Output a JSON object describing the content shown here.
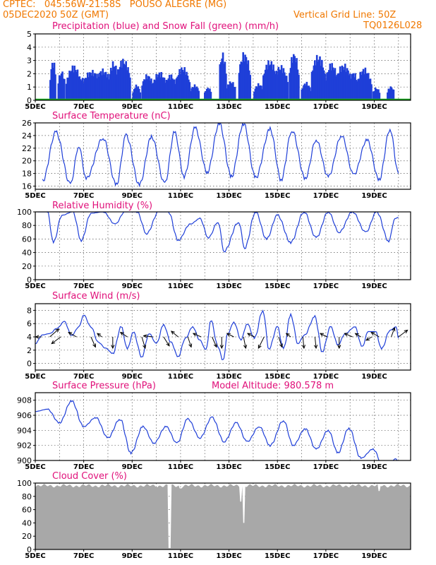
{
  "header": {
    "station": "CPTEC:   045:56W-21:58S   POUSO ALEGRE (MG)",
    "run": "05DEC2020 50Z (GMT)",
    "grid_note": "Vertical Grid Line: 50Z",
    "code": "TQ0126L028"
  },
  "colors": {
    "header": "#f07800",
    "title": "#e0107a",
    "line": "#1f3fd8",
    "snow": "#19a51e",
    "cloud": "#a8a8a8"
  },
  "x_ticks": [
    "5DEC",
    "7DEC",
    "9DEC",
    "11DEC",
    "13DEC",
    "15DEC",
    "17DEC",
    "19DEC"
  ],
  "x_tick_days": [
    5,
    7,
    9,
    11,
    13,
    15,
    17,
    19
  ],
  "x_range": [
    5,
    20.5
  ],
  "chart_data": [
    {
      "type": "bar",
      "title": "Precipitation (blue) and Snow Fall (green) (mm/h)",
      "ylim": [
        0,
        5
      ],
      "yticks": [
        0,
        1,
        2,
        3,
        4,
        5
      ],
      "series": [
        {
          "kind": "precip",
          "peaks": [
            [
              5.7,
              3.1,
              0.12
            ],
            [
              6.05,
              2.3,
              0.15
            ],
            [
              6.55,
              2.7,
              0.3
            ],
            [
              6.85,
              1.8,
              0.2
            ],
            [
              7.3,
              2.3,
              0.4
            ],
            [
              7.75,
              2.4,
              0.35
            ],
            [
              8.2,
              3.0,
              0.2
            ],
            [
              8.6,
              3.2,
              0.3
            ],
            [
              9.15,
              1.2,
              0.15
            ],
            [
              9.6,
              2.0,
              0.25
            ],
            [
              10.1,
              2.2,
              0.3
            ],
            [
              10.55,
              2.0,
              0.25
            ],
            [
              11.05,
              2.6,
              0.3
            ],
            [
              11.55,
              1.2,
              0.2
            ],
            [
              12.1,
              1.0,
              0.15
            ],
            [
              12.7,
              3.7,
              0.15
            ],
            [
              13.05,
              1.5,
              0.2
            ],
            [
              13.6,
              3.7,
              0.25
            ],
            [
              14.2,
              1.3,
              0.2
            ],
            [
              14.65,
              3.1,
              0.3
            ],
            [
              15.1,
              2.7,
              0.3
            ],
            [
              15.65,
              3.7,
              0.2
            ],
            [
              16.15,
              1.4,
              0.2
            ],
            [
              16.65,
              3.5,
              0.3
            ],
            [
              17.2,
              2.9,
              0.25
            ],
            [
              17.7,
              2.8,
              0.35
            ],
            [
              18.1,
              2.2,
              0.2
            ],
            [
              18.55,
              2.5,
              0.3
            ],
            [
              19.05,
              1.0,
              0.15
            ],
            [
              19.65,
              1.1,
              0.15
            ]
          ]
        },
        {
          "kind": "snow",
          "level": 0.05
        }
      ]
    },
    {
      "type": "line",
      "title": "Surface Temperature (nC)",
      "ylim": [
        15.5,
        26
      ],
      "yticks": [
        16,
        18,
        20,
        22,
        24,
        26
      ],
      "min_max": [
        [
          5.3,
          16.8
        ],
        [
          5.85,
          24.5
        ],
        [
          6.45,
          16.3
        ],
        [
          6.8,
          22.3
        ],
        [
          7.1,
          17.2
        ],
        [
          7.8,
          23.6
        ],
        [
          8.35,
          16.2
        ],
        [
          8.75,
          24.0
        ],
        [
          9.3,
          16.2
        ],
        [
          9.8,
          23.8
        ],
        [
          10.35,
          16.4
        ],
        [
          10.75,
          24.5
        ],
        [
          11.15,
          17.5
        ],
        [
          11.6,
          25.2
        ],
        [
          12.1,
          18.2
        ],
        [
          12.6,
          25.9
        ],
        [
          13.1,
          17.5
        ],
        [
          13.6,
          25.9
        ],
        [
          14.1,
          17.3
        ],
        [
          14.7,
          25.0
        ],
        [
          15.15,
          17.0
        ],
        [
          15.6,
          24.8
        ],
        [
          16.15,
          17.2
        ],
        [
          16.6,
          23.3
        ],
        [
          17.1,
          17.5
        ],
        [
          17.65,
          24.0
        ],
        [
          18.15,
          17.8
        ],
        [
          18.7,
          23.3
        ],
        [
          19.2,
          17.0
        ],
        [
          19.65,
          25.0
        ],
        [
          20.0,
          18.0
        ]
      ]
    },
    {
      "type": "line",
      "title": "Relative Humidity (%)",
      "ylim": [
        0,
        100
      ],
      "yticks": [
        0,
        20,
        40,
        60,
        80,
        100
      ],
      "min_max": [
        [
          5.1,
          100
        ],
        [
          5.5,
          100
        ],
        [
          5.75,
          55
        ],
        [
          6.1,
          95
        ],
        [
          6.55,
          100
        ],
        [
          6.9,
          58
        ],
        [
          7.3,
          98
        ],
        [
          7.8,
          100
        ],
        [
          8.3,
          82
        ],
        [
          8.7,
          100
        ],
        [
          9.2,
          100
        ],
        [
          9.6,
          68
        ],
        [
          10.1,
          100
        ],
        [
          10.5,
          100
        ],
        [
          10.9,
          58
        ],
        [
          11.4,
          82
        ],
        [
          11.8,
          90
        ],
        [
          12.15,
          62
        ],
        [
          12.55,
          85
        ],
        [
          12.8,
          42
        ],
        [
          13.4,
          85
        ],
        [
          13.65,
          47
        ],
        [
          14.1,
          100
        ],
        [
          14.55,
          60
        ],
        [
          15.0,
          95
        ],
        [
          15.55,
          55
        ],
        [
          16.1,
          100
        ],
        [
          16.6,
          62
        ],
        [
          17.1,
          100
        ],
        [
          17.55,
          70
        ],
        [
          18.1,
          100
        ],
        [
          18.65,
          70
        ],
        [
          19.1,
          100
        ],
        [
          19.6,
          57
        ],
        [
          19.85,
          90
        ],
        [
          20.0,
          92
        ]
      ]
    },
    {
      "type": "line",
      "title": "Surface Wind (m/s)",
      "ylim": [
        -1,
        9
      ],
      "yticks": [
        0,
        2,
        4,
        6,
        8
      ],
      "min_max": [
        [
          5.0,
          3.0
        ],
        [
          5.3,
          4.3
        ],
        [
          5.6,
          4.5
        ],
        [
          5.9,
          5.3
        ],
        [
          6.2,
          6.3
        ],
        [
          6.5,
          4.2
        ],
        [
          6.8,
          5.5
        ],
        [
          7.0,
          7.3
        ],
        [
          7.3,
          5.5
        ],
        [
          7.6,
          3.2
        ],
        [
          7.9,
          2.3
        ],
        [
          8.2,
          1.5
        ],
        [
          8.55,
          5.5
        ],
        [
          8.8,
          2.2
        ],
        [
          9.05,
          4.7
        ],
        [
          9.4,
          1.0
        ],
        [
          9.7,
          4.5
        ],
        [
          10.0,
          3.0
        ],
        [
          10.3,
          5.8
        ],
        [
          10.6,
          3.2
        ],
        [
          10.9,
          1.0
        ],
        [
          11.2,
          3.8
        ],
        [
          11.5,
          5.5
        ],
        [
          11.8,
          3.5
        ],
        [
          12.05,
          2.0
        ],
        [
          12.25,
          6.5
        ],
        [
          12.55,
          2.5
        ],
        [
          12.75,
          0.4
        ],
        [
          12.95,
          4.5
        ],
        [
          13.2,
          6.2
        ],
        [
          13.5,
          3.6
        ],
        [
          13.75,
          6.0
        ],
        [
          14.05,
          3.8
        ],
        [
          14.4,
          8.0
        ],
        [
          14.65,
          2.2
        ],
        [
          15.0,
          5.5
        ],
        [
          15.25,
          2.2
        ],
        [
          15.55,
          7.3
        ],
        [
          15.85,
          3.0
        ],
        [
          16.1,
          4.2
        ],
        [
          16.55,
          7.0
        ],
        [
          16.85,
          1.8
        ],
        [
          17.2,
          5.5
        ],
        [
          17.5,
          2.8
        ],
        [
          17.8,
          4.5
        ],
        [
          18.2,
          5.5
        ],
        [
          18.5,
          2.5
        ],
        [
          18.75,
          4.8
        ],
        [
          19.05,
          4.8
        ],
        [
          19.3,
          2.2
        ],
        [
          19.65,
          5.0
        ],
        [
          19.9,
          5.5
        ],
        [
          20.0,
          3.8
        ]
      ],
      "arrows": [
        [
          5.25,
          -0.5,
          0.0
        ],
        [
          5.6,
          0.8,
          0.7
        ],
        [
          6.05,
          -0.8,
          -0.6
        ],
        [
          6.7,
          -0.7,
          0.4
        ],
        [
          7.3,
          0.4,
          -0.9
        ],
        [
          7.75,
          -0.4,
          0.3
        ],
        [
          8.2,
          0.0,
          -1.0
        ],
        [
          8.8,
          -0.6,
          0.4
        ],
        [
          9.4,
          0.3,
          -1.0
        ],
        [
          9.85,
          -0.8,
          0.1
        ],
        [
          10.3,
          0.5,
          -0.8
        ],
        [
          10.9,
          -0.6,
          0.5
        ],
        [
          11.3,
          0.3,
          -0.9
        ],
        [
          11.85,
          -0.7,
          0.3
        ],
        [
          12.3,
          0.4,
          -0.9
        ],
        [
          12.7,
          0.0,
          -1.0
        ],
        [
          13.2,
          -0.6,
          0.3
        ],
        [
          13.6,
          0.2,
          -1.0
        ],
        [
          14.05,
          -0.6,
          0.3
        ],
        [
          14.45,
          -0.5,
          -1.0
        ],
        [
          15.05,
          0.3,
          -0.9
        ],
        [
          15.55,
          -0.4,
          0.3
        ],
        [
          16.05,
          0.1,
          -1.0
        ],
        [
          16.55,
          0.1,
          -1.0
        ],
        [
          17.05,
          -0.6,
          0.3
        ],
        [
          17.55,
          0.0,
          -1.0
        ],
        [
          18.1,
          -0.7,
          0.3
        ],
        [
          18.45,
          -0.5,
          0.3
        ],
        [
          18.9,
          -0.5,
          -0.3
        ],
        [
          19.2,
          -0.7,
          0.4
        ],
        [
          19.7,
          0.3,
          0.8
        ],
        [
          20.0,
          0.8,
          0.6
        ]
      ]
    },
    {
      "type": "line",
      "title": "Surface Pressure (hPa)",
      "subtitle": "Model Altitude: 980.578 m",
      "ylim": [
        900,
        909
      ],
      "yticks": [
        900,
        902,
        904,
        906,
        908
      ],
      "min_max": [
        [
          5.0,
          906.5
        ],
        [
          5.5,
          906.8
        ],
        [
          6.0,
          905.0
        ],
        [
          6.5,
          907.9
        ],
        [
          7.0,
          904.5
        ],
        [
          7.5,
          905.7
        ],
        [
          8.0,
          903.0
        ],
        [
          8.5,
          905.5
        ],
        [
          8.95,
          901.0
        ],
        [
          9.45,
          904.5
        ],
        [
          9.9,
          902.3
        ],
        [
          10.4,
          904.5
        ],
        [
          10.85,
          902.3
        ],
        [
          11.3,
          905.5
        ],
        [
          11.8,
          903.0
        ],
        [
          12.3,
          905.7
        ],
        [
          12.8,
          902.5
        ],
        [
          13.3,
          905.0
        ],
        [
          13.75,
          902.5
        ],
        [
          14.25,
          904.5
        ],
        [
          14.7,
          902.0
        ],
        [
          15.25,
          905.3
        ],
        [
          15.65,
          902.0
        ],
        [
          16.15,
          904.2
        ],
        [
          16.6,
          901.5
        ],
        [
          17.1,
          904.0
        ],
        [
          17.5,
          901.0
        ],
        [
          17.95,
          904.3
        ],
        [
          18.45,
          900.3
        ],
        [
          18.95,
          901.5
        ],
        [
          19.4,
          899.0
        ],
        [
          19.9,
          900.2
        ],
        [
          20.0,
          899.5
        ]
      ]
    },
    {
      "type": "area",
      "title": "Cloud Cover (%)",
      "ylim": [
        0,
        100
      ],
      "yticks": [
        0,
        20,
        40,
        60,
        80,
        100
      ],
      "base": 96,
      "dips": [
        [
          10.55,
          2
        ],
        [
          13.6,
          40
        ],
        [
          13.48,
          72
        ],
        [
          19.2,
          88
        ],
        [
          11.0,
          92
        ]
      ]
    }
  ]
}
